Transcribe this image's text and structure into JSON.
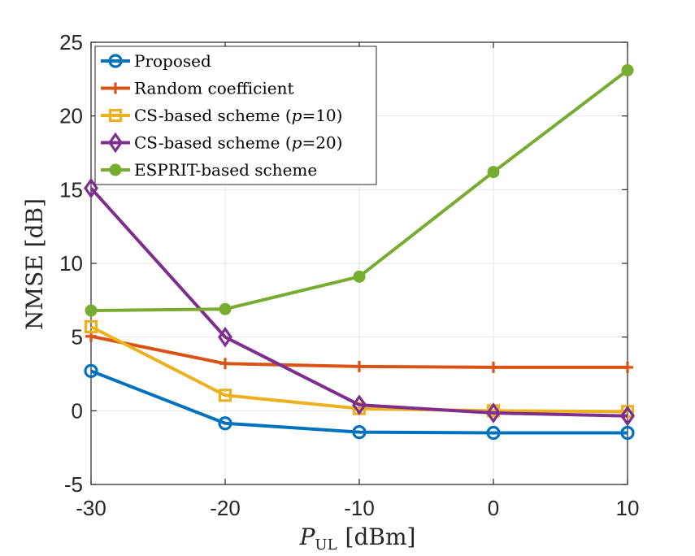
{
  "chart_data": {
    "type": "line",
    "title": "",
    "xlabel_main": "P",
    "xlabel_sub": "UL",
    "xlabel_unit": "[dBm]",
    "ylabel": "NMSE [dB]",
    "x": [
      -30,
      -20,
      -10,
      0,
      10
    ],
    "xticks": [
      -30,
      -20,
      -10,
      0,
      10
    ],
    "xtick_labels": [
      "-30",
      "-20",
      "-10",
      "0",
      "10"
    ],
    "yticks": [
      -5,
      0,
      5,
      10,
      15,
      20,
      25
    ],
    "ytick_labels": [
      "-5",
      "0",
      "5",
      "10",
      "15",
      "20",
      "25"
    ],
    "xlim": [
      -30,
      10
    ],
    "ylim": [
      -5,
      25
    ],
    "grid": true,
    "legend_position": "top-left",
    "series": [
      {
        "name": "Proposed",
        "legend_parts": [
          {
            "t": "Proposed",
            "italic": false
          }
        ],
        "color": "#0072BD",
        "marker": "circle",
        "values": [
          2.7,
          -0.85,
          -1.45,
          -1.5,
          -1.5
        ]
      },
      {
        "name": "Random coefficient",
        "legend_parts": [
          {
            "t": "Random coefficient",
            "italic": false
          }
        ],
        "color": "#D95319",
        "marker": "plus",
        "values": [
          5.05,
          3.2,
          3.0,
          2.95,
          2.95
        ]
      },
      {
        "name": "CS-based scheme (p=10)",
        "legend_parts": [
          {
            "t": "CS-based scheme (",
            "italic": false
          },
          {
            "t": "p",
            "italic": true
          },
          {
            "t": "=10)",
            "italic": false
          }
        ],
        "color": "#EDB120",
        "marker": "square",
        "values": [
          5.7,
          1.05,
          0.15,
          0.0,
          -0.05
        ]
      },
      {
        "name": "CS-based scheme (p=20)",
        "legend_parts": [
          {
            "t": "CS-based scheme (",
            "italic": false
          },
          {
            "t": "p",
            "italic": true
          },
          {
            "t": "=20)",
            "italic": false
          }
        ],
        "color": "#7E2F8E",
        "marker": "diamond",
        "values": [
          15.1,
          5.0,
          0.4,
          -0.15,
          -0.35
        ]
      },
      {
        "name": "ESPRIT-based scheme",
        "legend_parts": [
          {
            "t": "ESPRIT-based scheme",
            "italic": false
          }
        ],
        "color": "#77AC30",
        "marker": "filled-circle",
        "values": [
          6.8,
          6.9,
          9.1,
          16.2,
          23.1
        ]
      }
    ]
  }
}
